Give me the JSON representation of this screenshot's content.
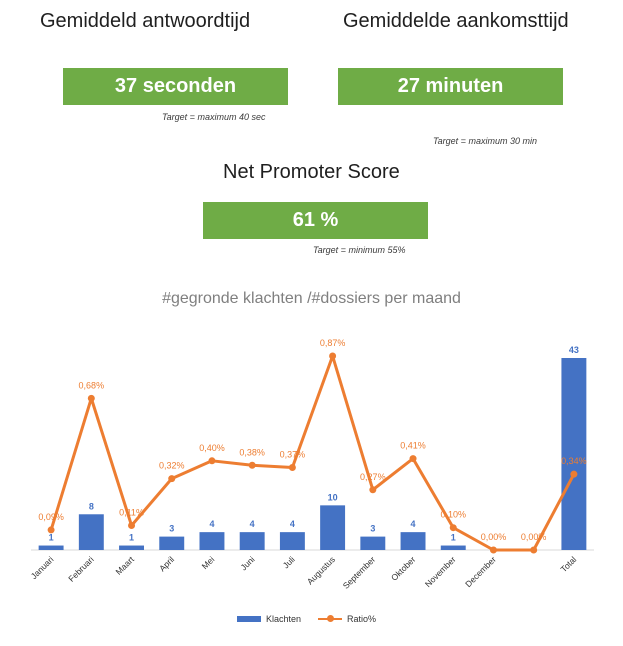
{
  "kpis": [
    {
      "title": "Gemiddeld antwoordtijd",
      "value": "37 seconden",
      "target": "Target = maximum 40 sec"
    },
    {
      "title": "Gemiddelde aankomsttijd",
      "value": "27 minuten",
      "target": "Target = maximum 30 min"
    },
    {
      "title": "Net Promoter Score",
      "value": "61 %",
      "target": "Target = minimum 55%"
    }
  ],
  "colors": {
    "kpi_green": "#70ad47",
    "bar_blue": "#4472c4",
    "line_orange": "#ed7d31"
  },
  "chart_data": {
    "type": "bar",
    "title": "#gegronde klachten /#dossiers per maand",
    "categories": [
      "Januari",
      "Februari",
      "Maart",
      "April",
      "Mei",
      "Juni",
      "Juli",
      "Augustus",
      "September",
      "Oktober",
      "November",
      "December",
      "",
      "Total"
    ],
    "series": [
      {
        "name": "Klachten",
        "type": "bar",
        "values": [
          1,
          8,
          1,
          3,
          4,
          4,
          4,
          10,
          3,
          4,
          1,
          null,
          null,
          43
        ],
        "labels": [
          "1",
          "8",
          "1",
          "3",
          "4",
          "4",
          "4",
          "10",
          "3",
          "4",
          "1",
          "",
          "",
          "43"
        ]
      },
      {
        "name": "Ratio%",
        "type": "line",
        "values": [
          0.09,
          0.68,
          0.11,
          0.32,
          0.4,
          0.38,
          0.37,
          0.87,
          0.27,
          0.41,
          0.1,
          0.0,
          0.0,
          0.34
        ],
        "labels": [
          "0,09%",
          "0,68%",
          "0,11%",
          "0,32%",
          "0,40%",
          "0,38%",
          "0,37%",
          "0,87%",
          "0,27%",
          "0,41%",
          "0,10%",
          "0,00%",
          "0,00%",
          "0,34%"
        ]
      }
    ],
    "legend": "bottom"
  }
}
